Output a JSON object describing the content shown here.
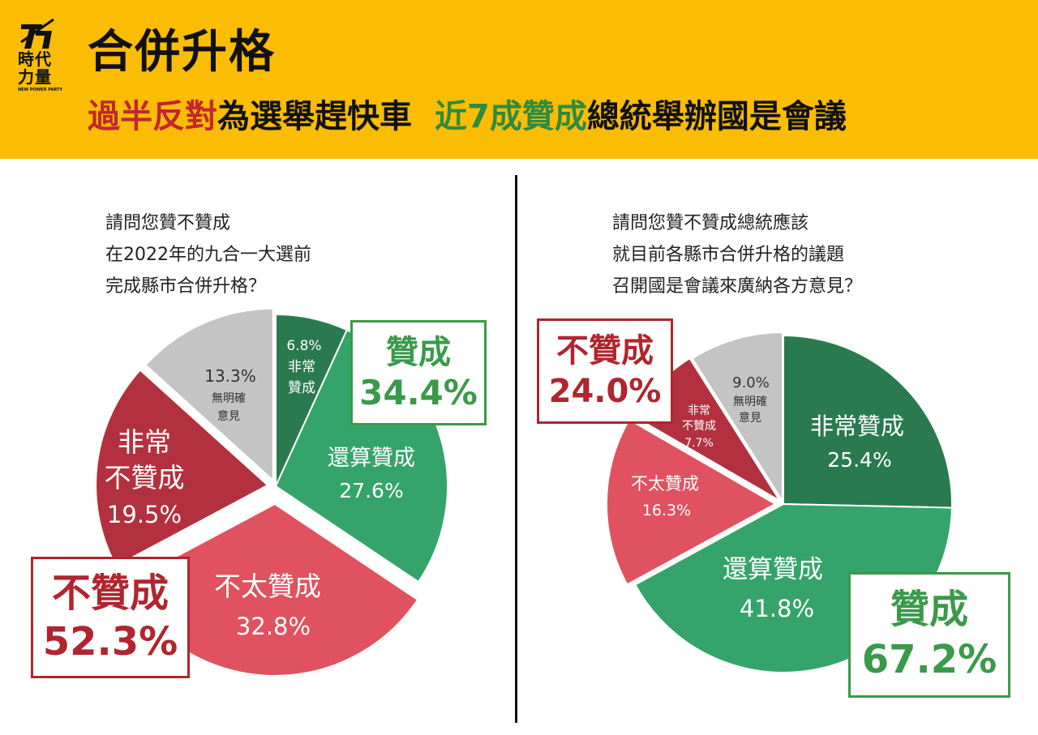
{
  "header": {
    "logo": {
      "glyph": "力",
      "line1": "時代",
      "line2": "力量",
      "line3": "NEW POWER PARTY"
    },
    "title": "合併升格",
    "subtitle": {
      "part1_red": "過半反對",
      "part1_rest": "為選舉趕快車",
      "part2_green": "近7成贊成",
      "part2_rest": "總統舉辦國是會議"
    }
  },
  "colors": {
    "header_bg": "#fbbc04",
    "dark_green": "#2a7a4f",
    "green": "#35a46a",
    "dark_red": "#b3313e",
    "red": "#e0525f",
    "gray": "#c4c4c4"
  },
  "left": {
    "question": [
      "請問您贊不贊成",
      "在2022年的九合一大選前",
      "完成縣市合併升格？"
    ],
    "labels": {
      "very_agree": [
        "6.8%",
        "非常",
        "贊成"
      ],
      "agree": [
        "還算贊成",
        "27.6%"
      ],
      "disagree": [
        "不太贊成",
        "32.8%"
      ],
      "very_disagree": [
        "非常",
        "不贊成",
        "19.5%"
      ],
      "no_opinion": [
        "13.3%",
        "無明確",
        "意見"
      ]
    },
    "agree_box": {
      "label": "贊成",
      "value": "34.4%"
    },
    "disagree_box": {
      "label": "不贊成",
      "value": "52.3%"
    }
  },
  "right": {
    "question": [
      "請問您贊不贊成總統應該",
      "就目前各縣市合併升格的議題",
      "召開國是會議來廣納各方意見？"
    ],
    "labels": {
      "very_agree": [
        "非常贊成",
        "25.4%"
      ],
      "agree": [
        "還算贊成",
        "41.8%"
      ],
      "disagree": [
        "不太贊成",
        "16.3%"
      ],
      "very_disagree": [
        "非常",
        "不贊成",
        "7.7%"
      ],
      "no_opinion": [
        "9.0%",
        "無明確",
        "意見"
      ]
    },
    "agree_box": {
      "label": "贊成",
      "value": "67.2%"
    },
    "disagree_box": {
      "label": "不贊成",
      "value": "24.0%"
    }
  },
  "chart_data": [
    {
      "type": "pie",
      "title": "請問您贊不贊成在2022年的九合一大選前完成縣市合併升格？",
      "categories": [
        "非常贊成",
        "還算贊成",
        "不太贊成",
        "非常不贊成",
        "無明確意見"
      ],
      "values": [
        6.8,
        27.6,
        32.8,
        19.5,
        13.3
      ],
      "groups": [
        {
          "name": "贊成",
          "value": 34.4
        },
        {
          "name": "不贊成",
          "value": 52.3
        }
      ]
    },
    {
      "type": "pie",
      "title": "請問您贊不贊成總統應該就目前各縣市合併升格的議題召開國是會議來廣納各方意見？",
      "categories": [
        "非常贊成",
        "還算贊成",
        "不太贊成",
        "非常不贊成",
        "無明確意見"
      ],
      "values": [
        25.4,
        41.8,
        16.3,
        7.7,
        9.0
      ],
      "groups": [
        {
          "name": "贊成",
          "value": 67.2
        },
        {
          "name": "不贊成",
          "value": 24.0
        }
      ]
    }
  ]
}
